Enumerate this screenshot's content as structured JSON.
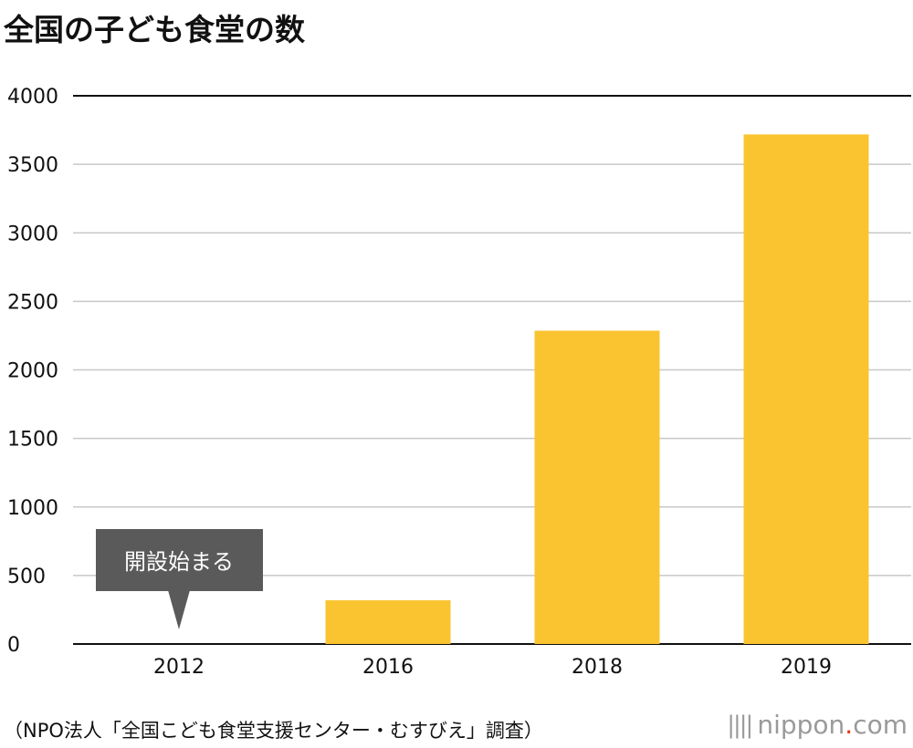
{
  "title": "全国の子ども食堂の数",
  "source": "（NPO法人「全国こども食堂支援センター・むすびえ」調査）",
  "logo": {
    "name": "nippon",
    "dot": ".",
    "tld": "com",
    "mark_icon": "vertical-bars-icon",
    "dot_color": "#e8380d"
  },
  "colors": {
    "bar": "#f9c430",
    "callout": "#5a5a5a",
    "grid": "#c8c8c8",
    "axis": "#111111"
  },
  "chart_data": {
    "type": "bar",
    "title": "全国の子ども食堂の数",
    "xlabel": "",
    "ylabel": "",
    "categories": [
      "2012",
      "2016",
      "2018",
      "2019"
    ],
    "values": [
      0,
      319,
      2286,
      3718
    ],
    "ylim": [
      0,
      4000
    ],
    "yticks": [
      "0",
      "500",
      "1000",
      "1500",
      "2000",
      "2500",
      "3000",
      "3500",
      "4000"
    ],
    "grid": true,
    "annotations": [
      {
        "category": "2012",
        "text": "開設始まる"
      }
    ]
  }
}
